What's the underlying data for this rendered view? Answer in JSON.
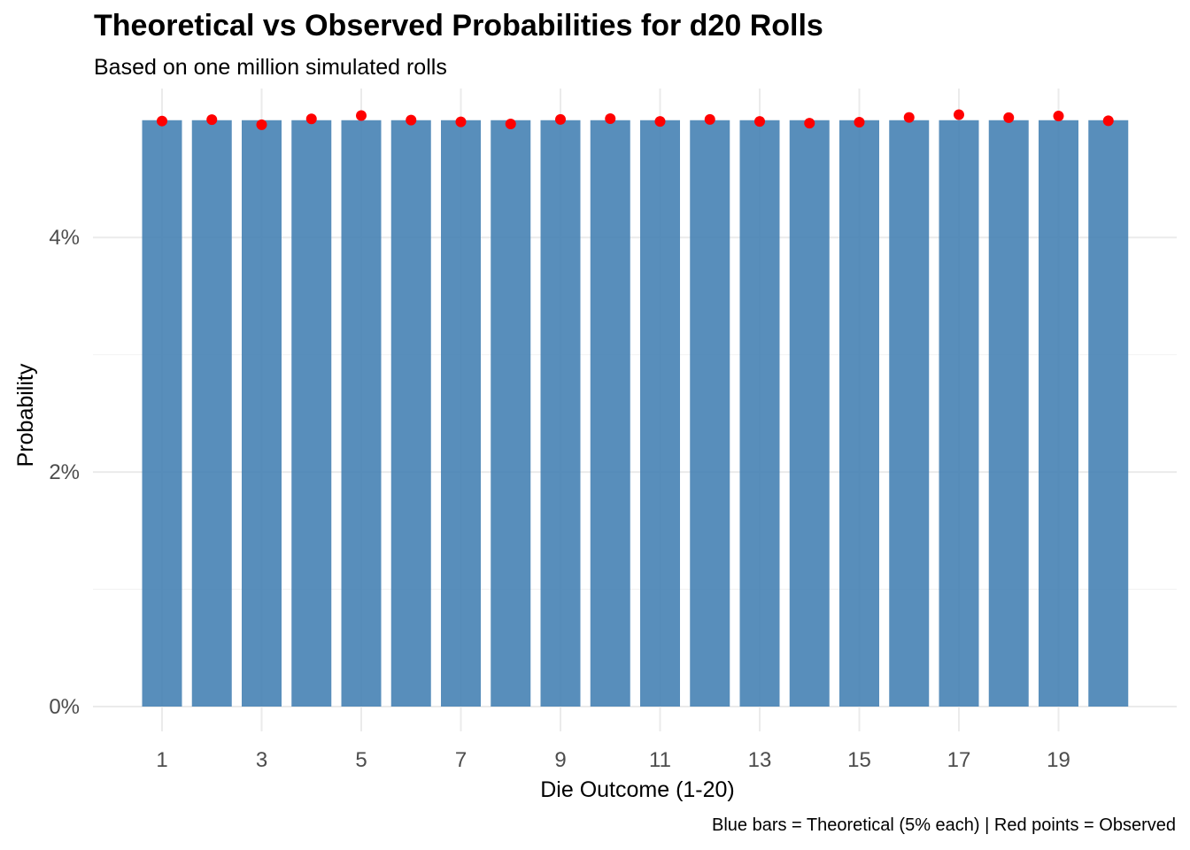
{
  "chart_data": {
    "type": "bar",
    "title": "Theoretical vs Observed Probabilities for d20 Rolls",
    "subtitle": "Based on one million simulated rolls",
    "caption": "Blue bars = Theoretical (5% each) | Red points = Observed",
    "xlabel": "Die Outcome (1-20)",
    "ylabel": "Probability",
    "categories": [
      1,
      2,
      3,
      4,
      5,
      6,
      7,
      8,
      9,
      10,
      11,
      12,
      13,
      14,
      15,
      16,
      17,
      18,
      19,
      20
    ],
    "x_tick_labels": [
      "1",
      "3",
      "5",
      "7",
      "9",
      "11",
      "13",
      "15",
      "17",
      "19"
    ],
    "y_tick_labels": [
      "0%",
      "2%",
      "4%"
    ],
    "y_ticks": [
      0,
      0.02,
      0.04
    ],
    "ylim": [
      0,
      0.0527
    ],
    "series": [
      {
        "kind": "bar",
        "color": "#4682B4",
        "values": [
          0.05,
          0.05,
          0.05,
          0.05,
          0.05,
          0.05,
          0.05,
          0.05,
          0.05,
          0.05,
          0.05,
          0.05,
          0.05,
          0.05,
          0.05,
          0.05,
          0.05,
          0.05,
          0.05,
          0.05
        ]
      },
      {
        "kind": "point",
        "color": "#FF0000",
        "values": [
          0.04993,
          0.05005,
          0.04961,
          0.05011,
          0.0504,
          0.05001,
          0.04986,
          0.04968,
          0.05007,
          0.05013,
          0.0499,
          0.05007,
          0.0499,
          0.04975,
          0.04983,
          0.05024,
          0.05047,
          0.05022,
          0.05036,
          0.04995
        ]
      }
    ],
    "grid": true,
    "legend": "none"
  }
}
